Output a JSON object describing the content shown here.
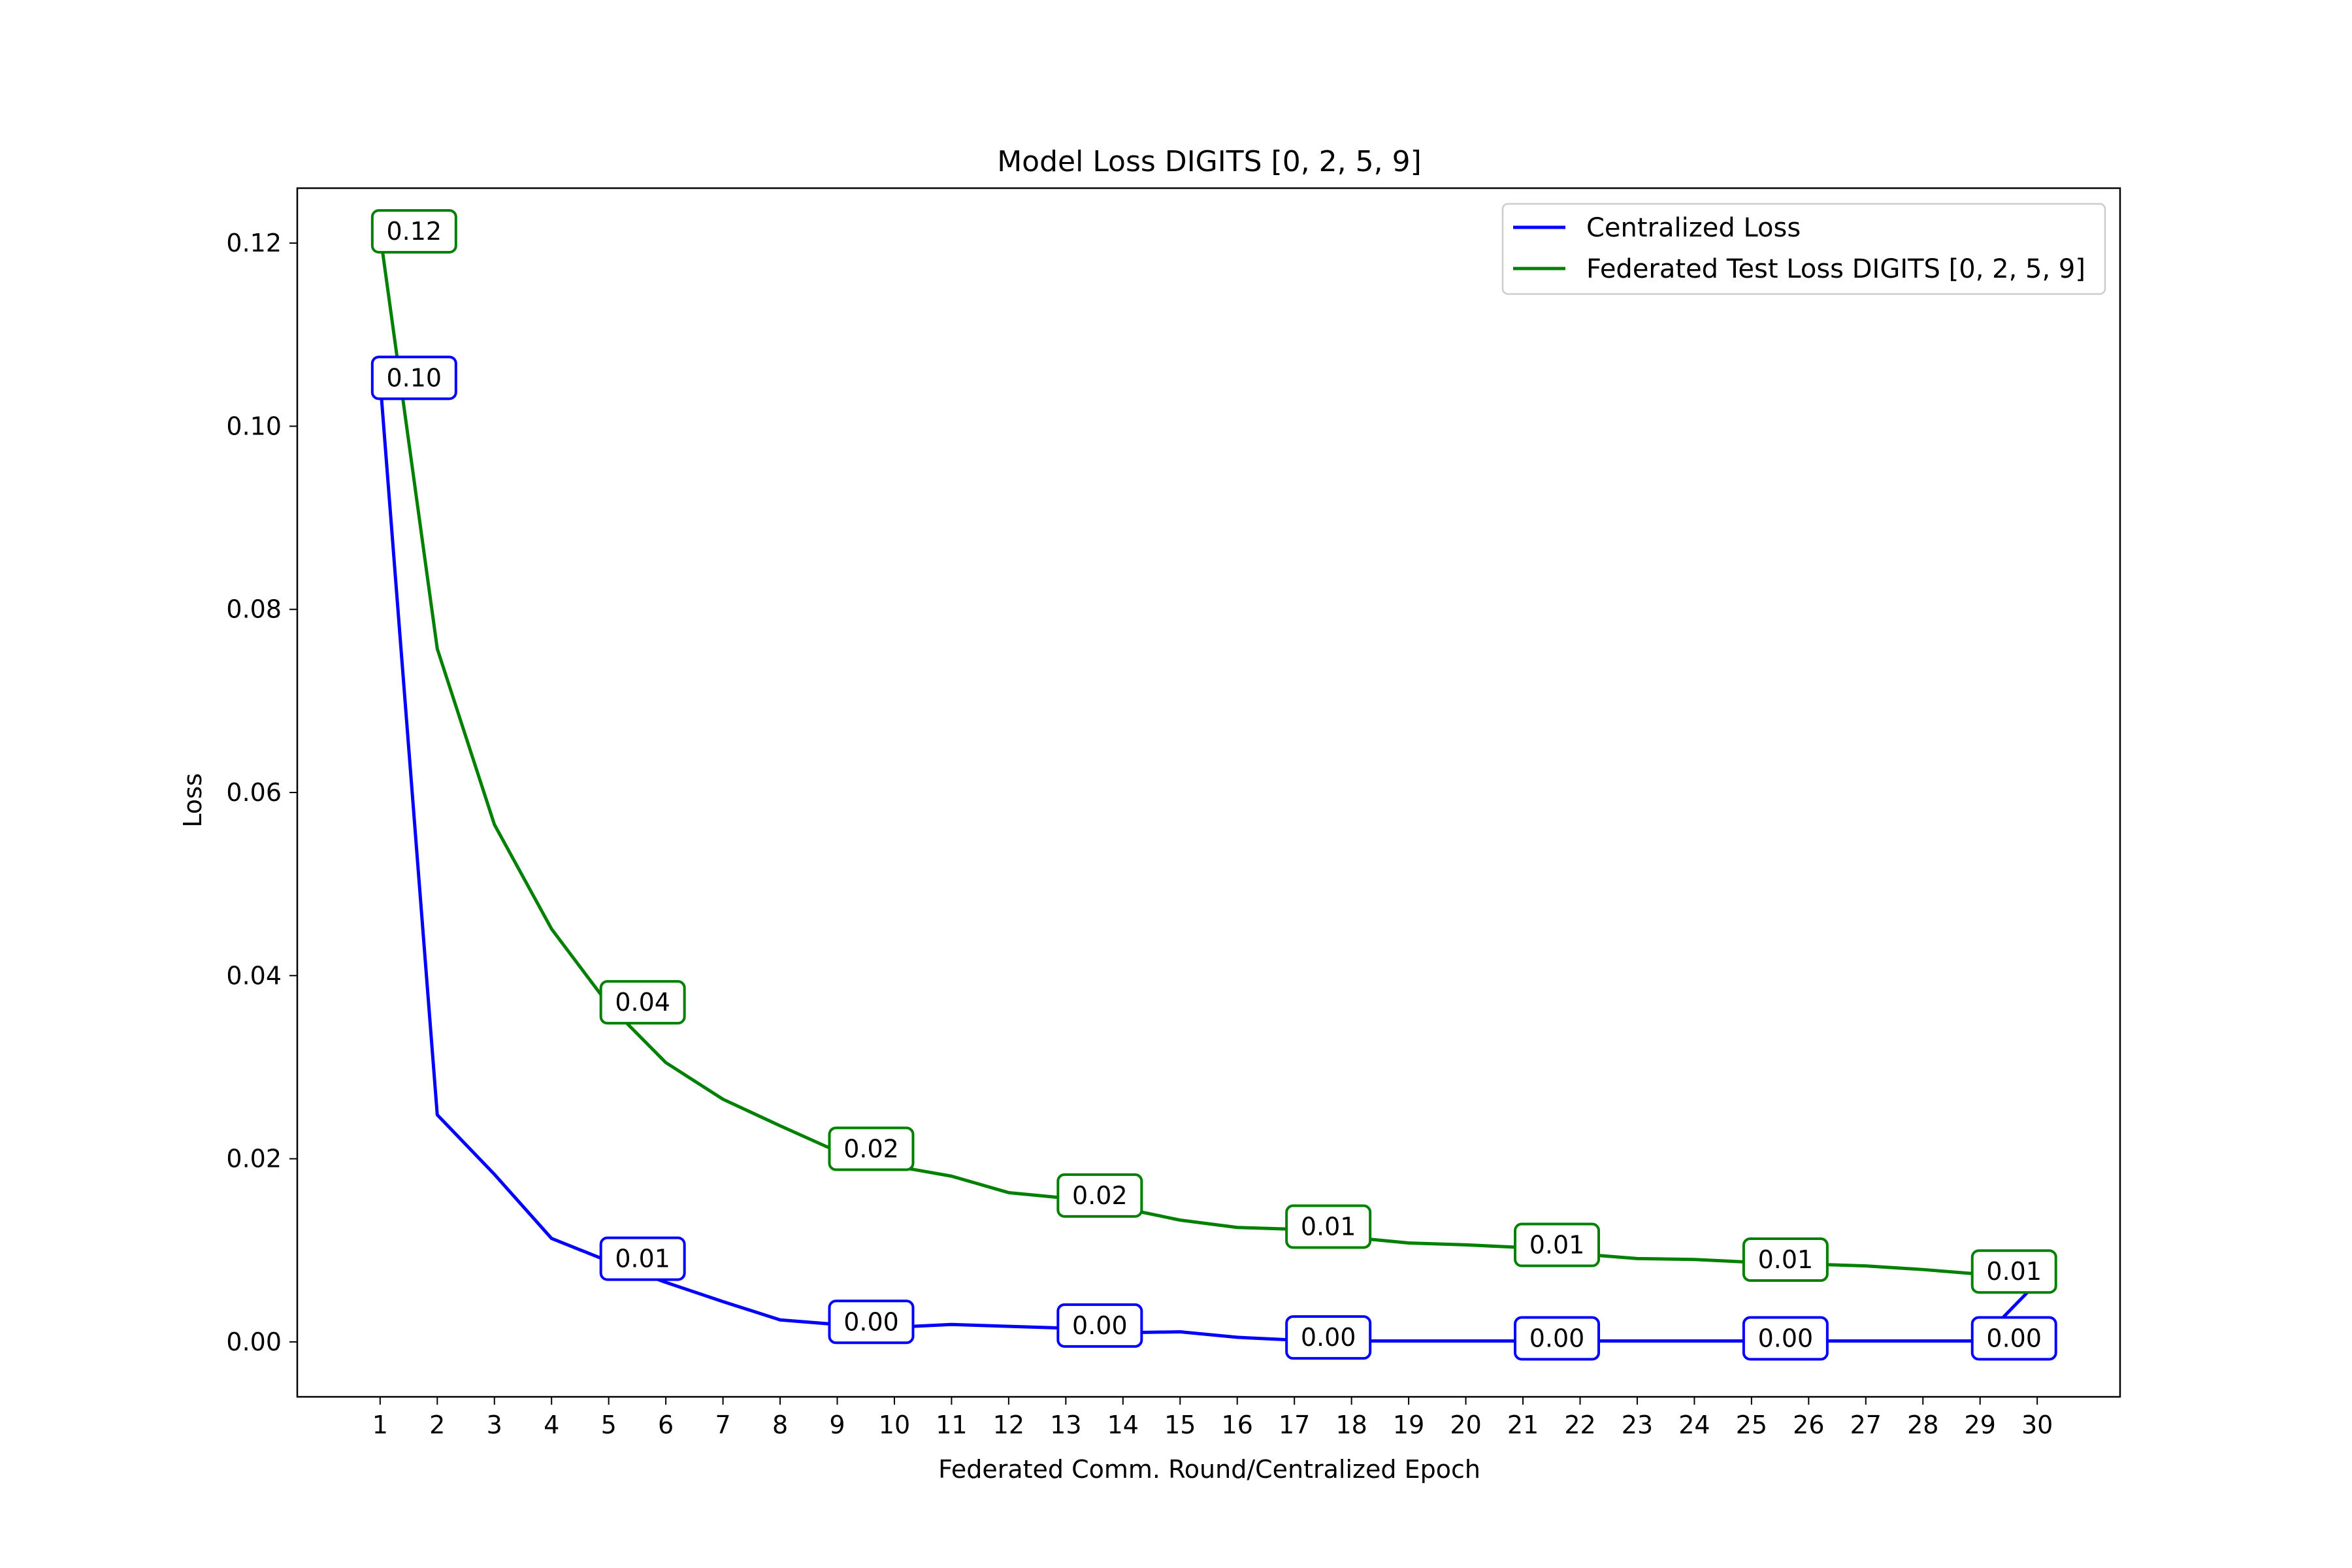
{
  "chart_data": {
    "type": "line",
    "title": "Model Loss DIGITS [0, 2, 5, 9]",
    "xlabel": "Federated Comm. Round/Centralized Epoch",
    "ylabel": "Loss",
    "x": [
      1,
      2,
      3,
      4,
      5,
      6,
      7,
      8,
      9,
      10,
      11,
      12,
      13,
      14,
      15,
      16,
      17,
      18,
      19,
      20,
      21,
      22,
      23,
      24,
      25,
      26,
      27,
      28,
      29,
      30
    ],
    "xticks": [
      "1",
      "2",
      "3",
      "4",
      "5",
      "6",
      "7",
      "8",
      "9",
      "10",
      "11",
      "12",
      "13",
      "14",
      "15",
      "16",
      "17",
      "18",
      "19",
      "20",
      "21",
      "22",
      "23",
      "24",
      "25",
      "26",
      "27",
      "28",
      "29",
      "30"
    ],
    "xlim": [
      -0.45,
      31.45
    ],
    "ylim": [
      -0.006,
      0.126
    ],
    "yticks": [
      "0.00",
      "0.02",
      "0.04",
      "0.06",
      "0.08",
      "0.10",
      "0.12"
    ],
    "ytick_values": [
      0,
      0.02,
      0.04,
      0.06,
      0.08,
      0.1,
      0.12
    ],
    "grid": false,
    "legend_position": "top-right",
    "series": [
      {
        "name": "Centralized Loss",
        "color": "#0000ff",
        "values": [
          0.105,
          0.0248,
          0.0183,
          0.0113,
          0.0088,
          0.0065,
          0.0044,
          0.0024,
          0.0019,
          0.0016,
          0.0019,
          0.0017,
          0.0015,
          0.001,
          0.0011,
          0.0005,
          0.0002,
          0.0001,
          0.0001,
          0.0001,
          0.0001,
          0.0001,
          0.0001,
          0.0001,
          0.0001,
          0.0001,
          0.0001,
          0.0001,
          0.0001,
          0.0065
        ],
        "annotations": [
          {
            "x": 1,
            "y": 0.105,
            "text": "0.10"
          },
          {
            "x": 5,
            "y": 0.0088,
            "text": "0.01"
          },
          {
            "x": 9,
            "y": 0.0019,
            "text": "0.00"
          },
          {
            "x": 13,
            "y": 0.0015,
            "text": "0.00"
          },
          {
            "x": 17,
            "y": 0.0002,
            "text": "0.00"
          },
          {
            "x": 21,
            "y": 0.0001,
            "text": "0.00"
          },
          {
            "x": 25,
            "y": 0.0001,
            "text": "0.00"
          },
          {
            "x": 29,
            "y": 0.0001,
            "text": "0.00"
          }
        ]
      },
      {
        "name": "Federated Test Loss DIGITS [0, 2, 5, 9]",
        "color": "#008000",
        "values": [
          0.121,
          0.0757,
          0.0565,
          0.0451,
          0.0368,
          0.0305,
          0.0265,
          0.0236,
          0.0208,
          0.0192,
          0.0181,
          0.0163,
          0.0157,
          0.0146,
          0.0133,
          0.0125,
          0.0123,
          0.0114,
          0.0108,
          0.0106,
          0.0103,
          0.0096,
          0.0091,
          0.009,
          0.0087,
          0.0085,
          0.0083,
          0.0079,
          0.0074,
          0.0082
        ],
        "annotations": [
          {
            "x": 1,
            "y": 0.121,
            "text": "0.12"
          },
          {
            "x": 5,
            "y": 0.0368,
            "text": "0.04"
          },
          {
            "x": 9,
            "y": 0.0208,
            "text": "0.02"
          },
          {
            "x": 13,
            "y": 0.0157,
            "text": "0.02"
          },
          {
            "x": 17,
            "y": 0.0123,
            "text": "0.01"
          },
          {
            "x": 21,
            "y": 0.0103,
            "text": "0.01"
          },
          {
            "x": 25,
            "y": 0.0087,
            "text": "0.01"
          },
          {
            "x": 29,
            "y": 0.0074,
            "text": "0.01"
          }
        ]
      }
    ]
  }
}
